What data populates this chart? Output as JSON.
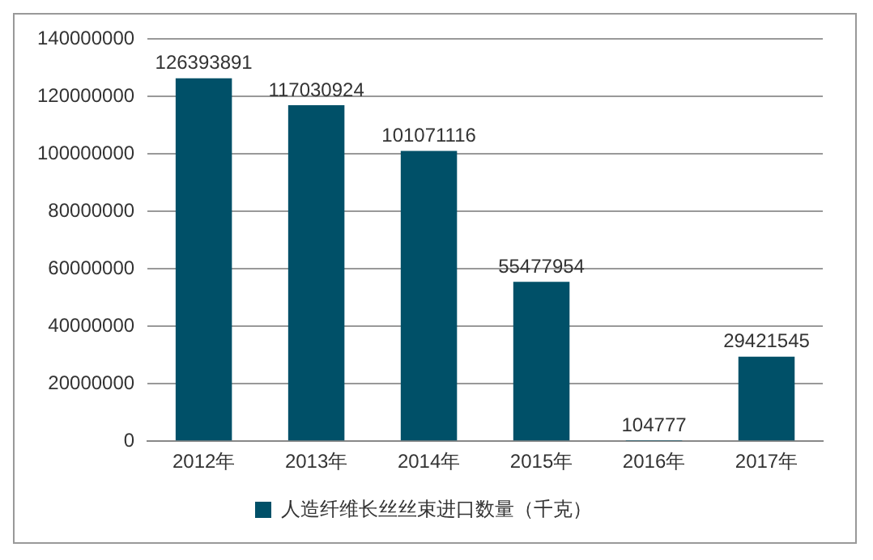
{
  "chart_data": {
    "type": "bar",
    "categories": [
      "2012年",
      "2013年",
      "2014年",
      "2015年",
      "2016年",
      "2017年"
    ],
    "series": [
      {
        "name": "人造纤维长丝丝束进口数量（千克）",
        "color": "#005068",
        "values": [
          126393891,
          117030924,
          101071116,
          55477954,
          104777,
          29421545
        ]
      }
    ],
    "ylim": [
      0,
      140000000
    ],
    "yticks": [
      0,
      20000000,
      40000000,
      60000000,
      80000000,
      100000000,
      120000000,
      140000000
    ],
    "grid": "y",
    "legend": "bottom",
    "data_labels": true
  }
}
